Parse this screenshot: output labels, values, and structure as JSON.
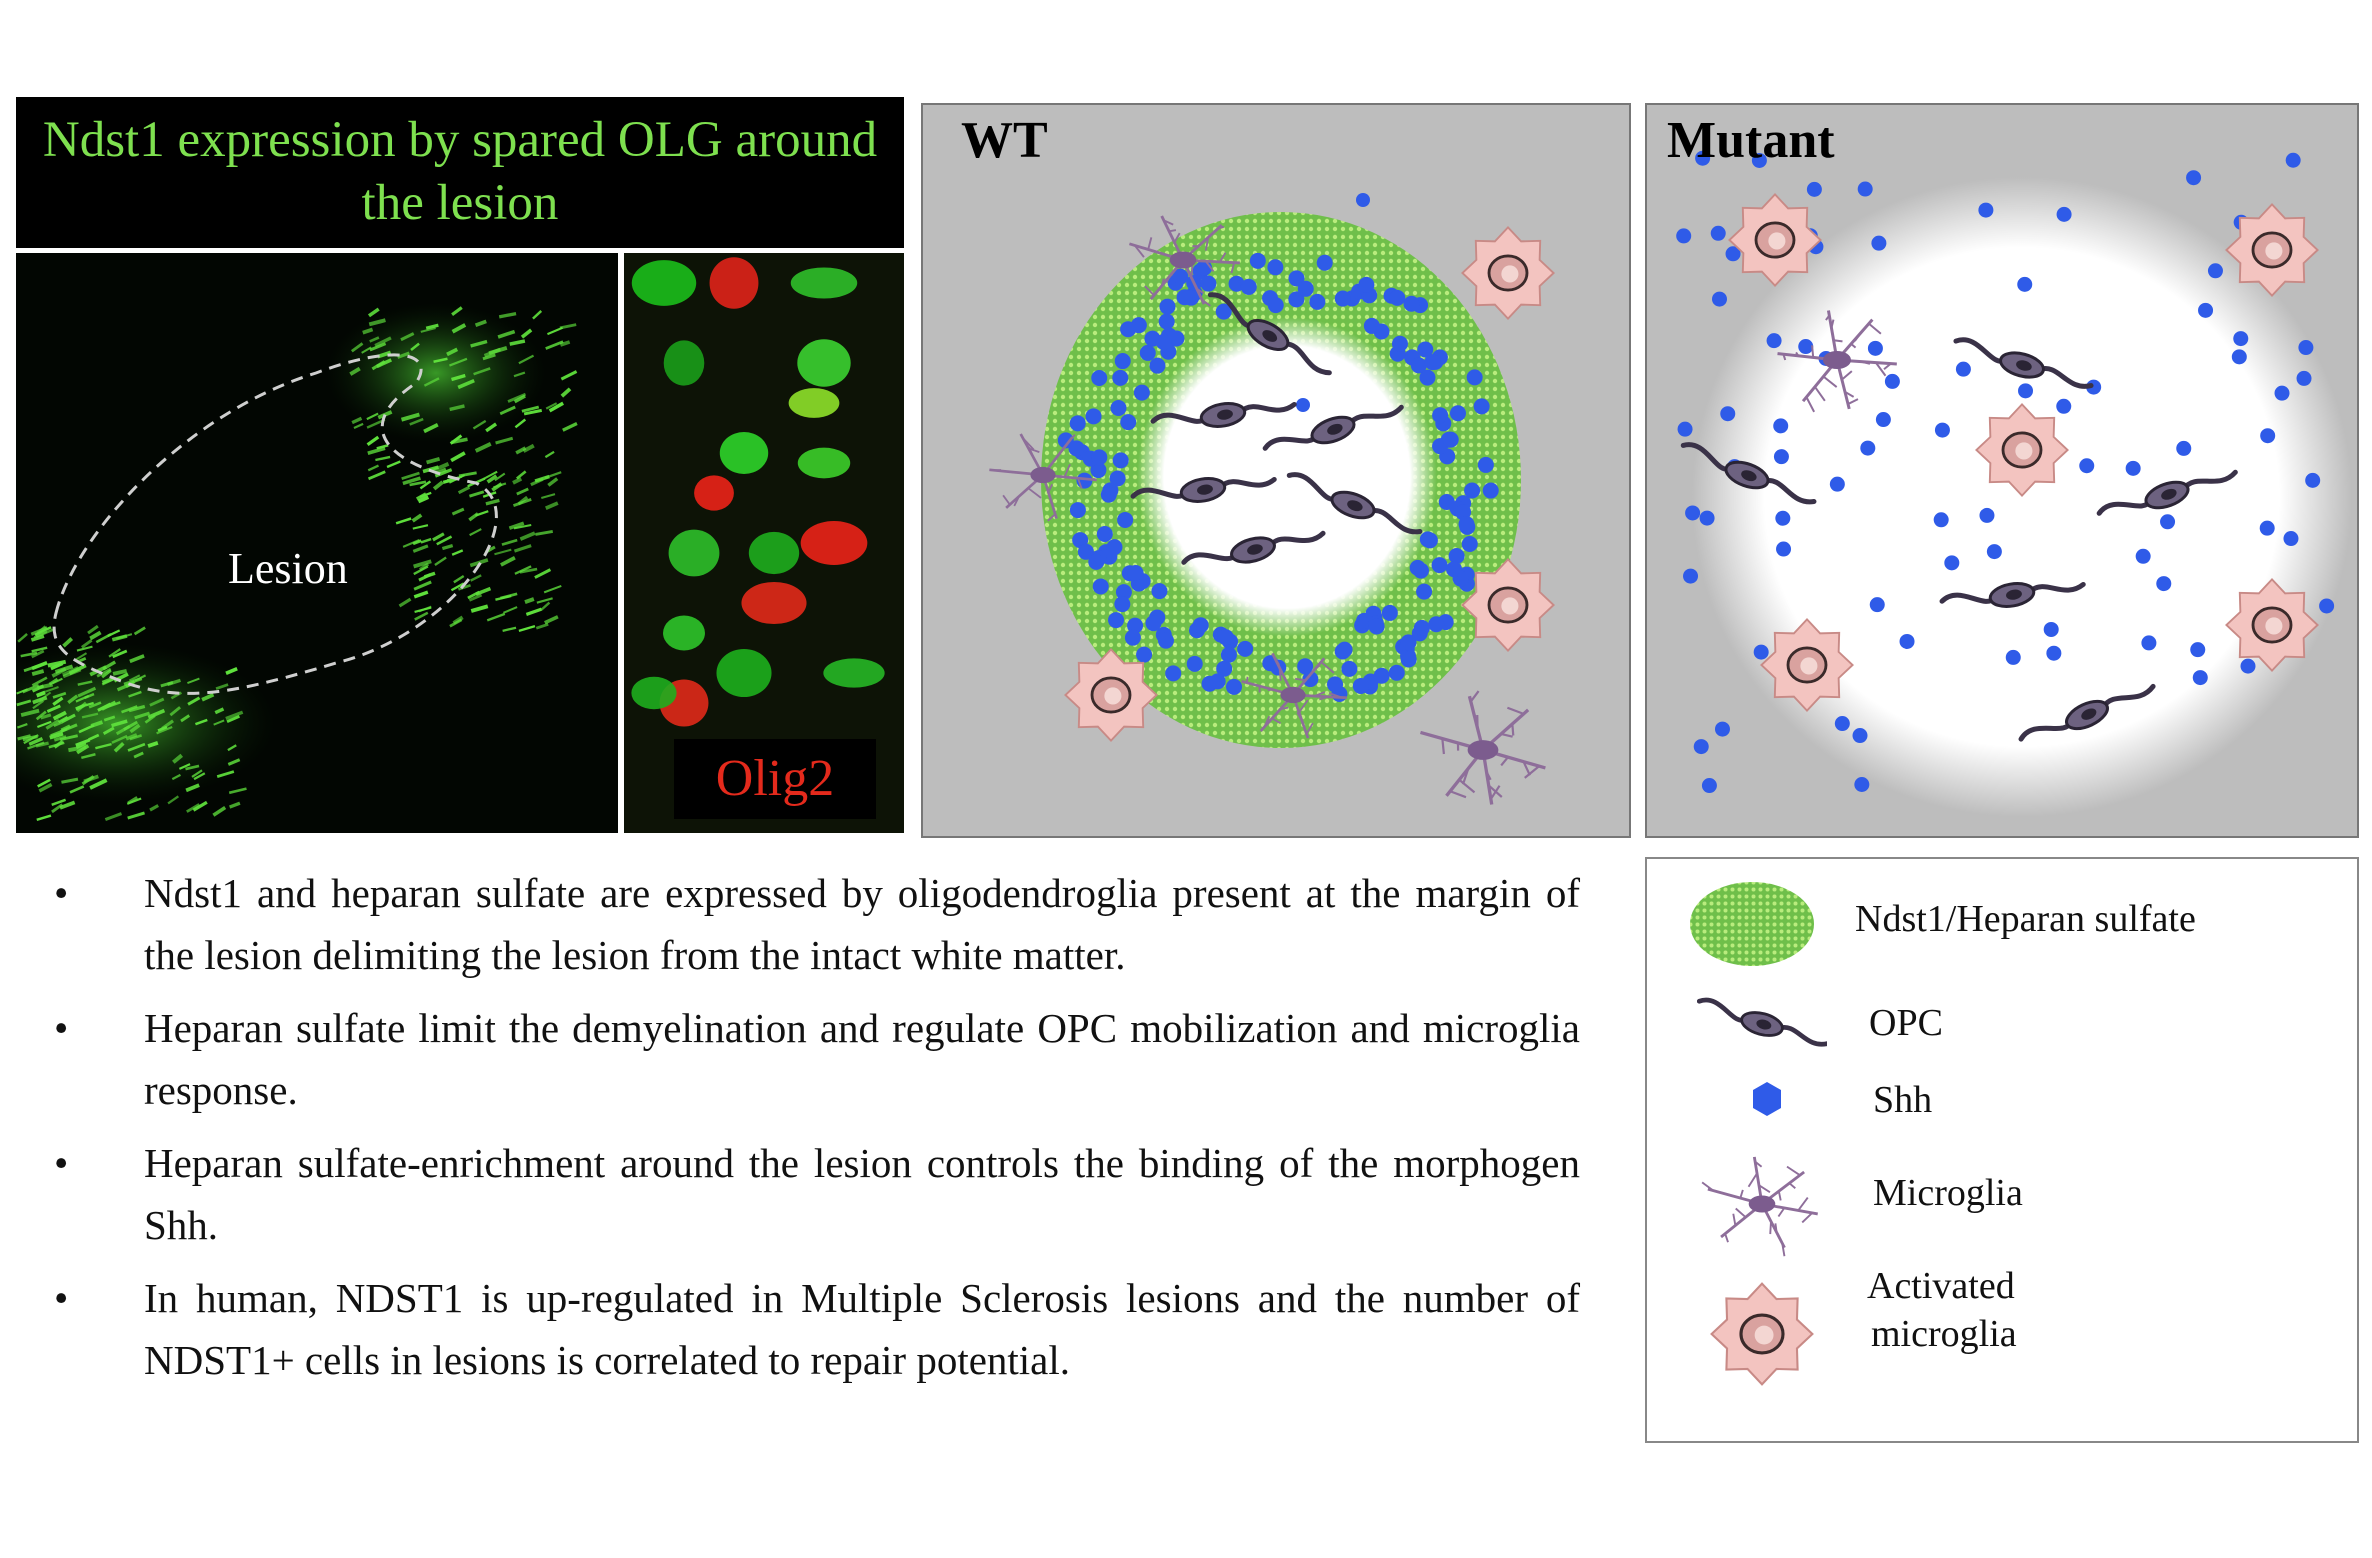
{
  "micrograph": {
    "title": "Ndst1 expression by spared OLG around the lesion",
    "lesion_label": "Lesion",
    "marker_label": "Olig2"
  },
  "panels": {
    "wt_title": "WT",
    "mutant_title": "Mutant"
  },
  "bullets": [
    "Ndst1 and heparan sulfate are expressed  by oligodendroglia present at the margin of the lesion delimiting the lesion from the intact white matter.",
    "Heparan sulfate limit the demyelination and regulate OPC mobilization and microglia response.",
    "Heparan sulfate-enrichment around the lesion controls the binding of the morphogen Shh.",
    "In human, NDST1 is up-regulated in Multiple Sclerosis lesions and the number of NDST1+ cells in lesions is correlated to repair potential."
  ],
  "bullet_symbol": "•",
  "legend": {
    "heparan": "Ndst1/Heparan sulfate",
    "opc": "OPC",
    "shh": "Shh",
    "microglia": "Microglia",
    "activated_line1": "Activated",
    "activated_line2": "microglia"
  },
  "colors": {
    "ndst1_green": "#7ee04f",
    "olig2_red": "#e42a1c",
    "shh_blue": "#2f5be8",
    "microglia_purple": "#8e6e9a",
    "opc_dark": "#3a3248",
    "activated_pink": "#f3c4c0",
    "panel_gray": "#bdbdbd"
  }
}
